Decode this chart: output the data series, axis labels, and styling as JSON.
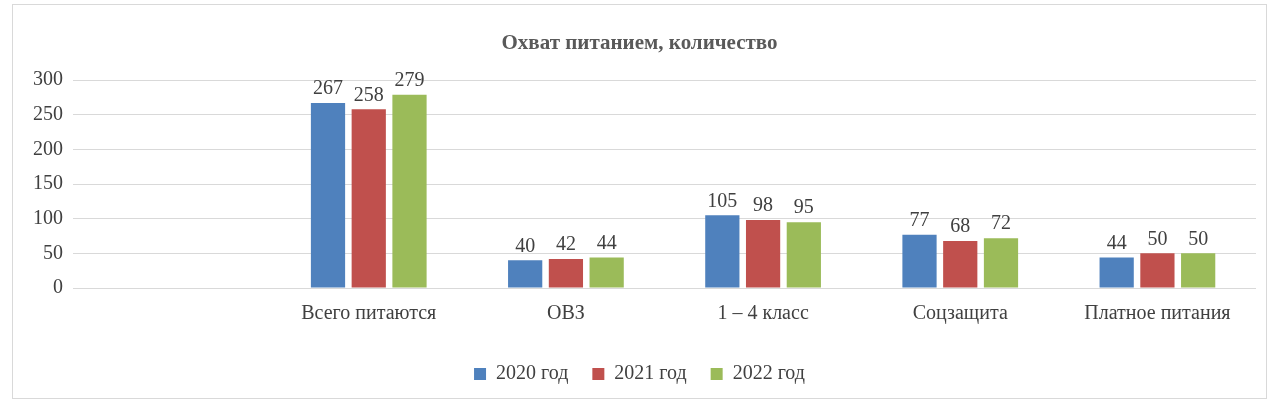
{
  "chart_data": {
    "type": "bar",
    "title": "Охват питанием, количество",
    "categories": [
      null,
      "Всего питаются",
      "ОВЗ",
      "1 – 4 класс",
      "Соцзащита",
      "Платное питания"
    ],
    "series": [
      {
        "name": "2020 год",
        "color": "#4f81bd",
        "values": [
          null,
          267,
          40,
          105,
          77,
          44
        ]
      },
      {
        "name": "2021 год",
        "color": "#c0504d",
        "values": [
          null,
          258,
          42,
          98,
          68,
          50
        ]
      },
      {
        "name": "2022 год",
        "color": "#9bbb59",
        "values": [
          null,
          279,
          44,
          95,
          72,
          50
        ]
      }
    ],
    "ylim": [
      0,
      300
    ],
    "yticks": [
      0,
      50,
      100,
      150,
      200,
      250,
      300
    ],
    "grid": "y",
    "legend": "bottom",
    "data_labels": true
  }
}
